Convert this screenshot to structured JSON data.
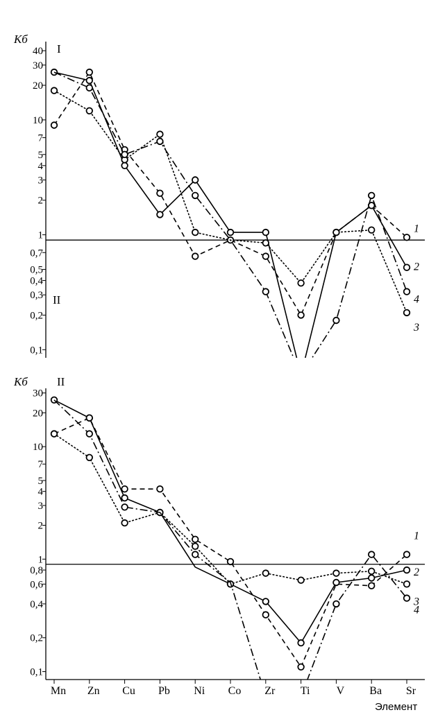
{
  "chart_data": [
    {
      "type": "line",
      "panel_label": "I",
      "region_labels": [
        "I",
        "II"
      ],
      "ylabel": "Кб",
      "yscale": "log",
      "ylim": [
        0.085,
        48
      ],
      "ytick_labels": [
        "40",
        "30",
        "20",
        "10",
        "7",
        "5",
        "4",
        "3",
        "2",
        "1",
        "0,7",
        "0,5",
        "0,4",
        "0,3",
        "0,2",
        "0,1"
      ],
      "ytick_values": [
        40,
        30,
        20,
        10,
        7,
        5,
        4,
        3,
        2,
        1,
        0.7,
        0.5,
        0.4,
        0.3,
        0.2,
        0.1
      ],
      "reference_line": 0.9,
      "categories": [
        "Mn",
        "Zn",
        "Cu",
        "Pb",
        "Ni",
        "Co",
        "Zr",
        "Ti",
        "V",
        "Ba",
        "Sr"
      ],
      "series": [
        {
          "name": "1",
          "style": "dashed",
          "values": [
            9,
            26,
            5.5,
            2.3,
            0.65,
            0.9,
            0.65,
            0.2,
            1.05,
            1.8,
            0.95
          ],
          "marked": [
            true,
            true,
            true,
            true,
            true,
            true,
            true,
            true,
            true,
            true,
            true
          ]
        },
        {
          "name": "2",
          "style": "solid",
          "values": [
            26,
            22,
            4,
            1.5,
            3,
            1.05,
            1.05,
            0.06,
            1.05,
            1.8,
            0.52
          ],
          "marked": [
            true,
            true,
            true,
            true,
            true,
            true,
            true,
            false,
            false,
            true,
            true
          ]
        },
        {
          "name": "3",
          "style": "dotted",
          "values": [
            18,
            12,
            4.5,
            7.5,
            1.05,
            0.9,
            0.85,
            0.38,
            1.05,
            1.1,
            0.21
          ],
          "marked": [
            true,
            true,
            true,
            true,
            true,
            false,
            true,
            true,
            true,
            true,
            true
          ]
        },
        {
          "name": "4",
          "style": "dashdot",
          "values": [
            26,
            19,
            5,
            6.5,
            2.2,
            0.9,
            0.32,
            0.06,
            0.18,
            2.2,
            0.32
          ],
          "marked": [
            false,
            true,
            true,
            true,
            true,
            false,
            true,
            false,
            true,
            true,
            true
          ]
        }
      ]
    },
    {
      "type": "line",
      "panel_label": "II",
      "ylabel": "Кб",
      "yscale": "log",
      "ylim": [
        0.085,
        33
      ],
      "ytick_labels": [
        "30",
        "20",
        "10",
        "7",
        "5",
        "4",
        "3",
        "2",
        "1",
        "0,8",
        "0,6",
        "0,4",
        "0,2",
        "0,1"
      ],
      "ytick_values": [
        30,
        20,
        10,
        7,
        5,
        4,
        3,
        2,
        1,
        0.8,
        0.6,
        0.4,
        0.2,
        0.1
      ],
      "reference_line": 0.9,
      "xlabel": "Элемент",
      "categories": [
        "Mn",
        "Zn",
        "Cu",
        "Pb",
        "Ni",
        "Co",
        "Zr",
        "Ti",
        "V",
        "Ba",
        "Sr"
      ],
      "series": [
        {
          "name": "1",
          "style": "dashed",
          "values": [
            13,
            18,
            4.2,
            4.2,
            1.5,
            0.95,
            0.32,
            0.11,
            0.6,
            0.58,
            1.1
          ],
          "marked": [
            true,
            true,
            true,
            true,
            true,
            true,
            true,
            true,
            false,
            true,
            true
          ]
        },
        {
          "name": "2",
          "style": "solid",
          "values": [
            26,
            18,
            3.5,
            2.6,
            0.85,
            0.6,
            0.42,
            0.18,
            0.62,
            0.68,
            0.8
          ],
          "marked": [
            true,
            true,
            true,
            true,
            false,
            true,
            true,
            true,
            true,
            true,
            true
          ]
        },
        {
          "name": "3",
          "style": "dotted",
          "values": [
            13,
            8,
            2.1,
            2.6,
            1.3,
            0.6,
            0.75,
            0.65,
            0.75,
            0.78,
            0.6
          ],
          "marked": [
            true,
            true,
            true,
            true,
            true,
            true,
            true,
            true,
            true,
            true,
            true
          ]
        },
        {
          "name": "4",
          "style": "dashdot",
          "values": [
            26,
            13,
            2.9,
            2.6,
            1.1,
            0.62,
            0.06,
            0.06,
            0.4,
            1.1,
            0.45
          ],
          "marked": [
            false,
            true,
            true,
            false,
            true,
            false,
            false,
            false,
            true,
            true,
            true
          ]
        }
      ]
    }
  ]
}
